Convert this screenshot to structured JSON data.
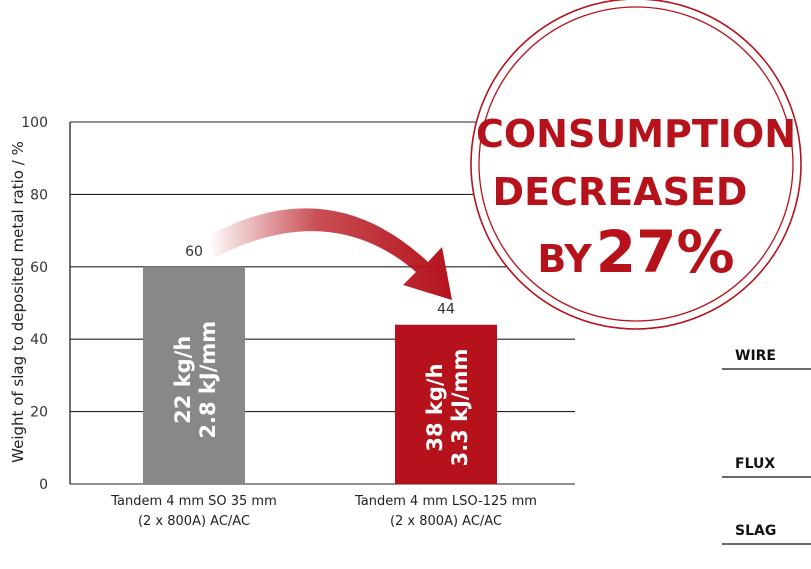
{
  "chart_data": {
    "type": "bar",
    "ylabel": "Weight of slag to deposited metal ratio / %",
    "ylim": [
      0,
      100
    ],
    "yticks": [
      0,
      20,
      40,
      60,
      80,
      100
    ],
    "grid": true,
    "categories": [
      [
        "Tandem 4 mm SO 35 mm",
        "(2 x 800A) AC/AC"
      ],
      [
        "Tandem 4 mm LSO-125 mm",
        "(2 x 800A) AC/AC"
      ]
    ],
    "values": [
      60,
      44
    ],
    "bar_labels": [
      [
        "22 kg/h",
        "2.8 kJ/mm"
      ],
      [
        "38 kg/h",
        "3.3 kJ/mm"
      ]
    ],
    "colors": {
      "bars": [
        "#888888",
        "#b5121b"
      ],
      "accent": "#b5121b",
      "axis": "#222222"
    },
    "annotation": {
      "lines": [
        "CONSUMPTION",
        "DECREASED"
      ],
      "prefix": "BY",
      "value": "27%"
    }
  },
  "side_labels": [
    "WIRE",
    "FLUX",
    "SLAG"
  ]
}
